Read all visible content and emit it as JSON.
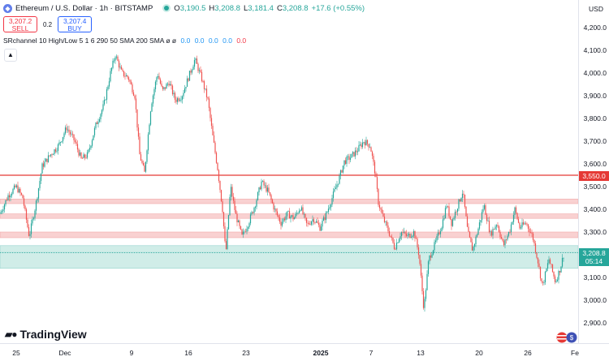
{
  "header": {
    "symbol": "Ethereum / U.S. Dollar · 1h · BITSTAMP",
    "open_key": "O",
    "open": "3,190.5",
    "high_key": "H",
    "high": "3,208.8",
    "low_key": "L",
    "low": "3,181.4",
    "close_key": "C",
    "close": "3,208.8",
    "change": "+17.6 (+0.55%)"
  },
  "trade": {
    "sell_price": "3,207.2",
    "sell_label": "SELL",
    "spread": "0.2",
    "buy_price": "3,207.4",
    "buy_label": "BUY"
  },
  "indicator": {
    "name": "SRchannel 10 High/Low 5 1 6 290 50 SMA 200 SMA",
    "flags": "ø ø",
    "values": [
      "0.0",
      "0.0",
      "0.0",
      "0.0"
    ],
    "last_value": "0.0"
  },
  "price_axis": {
    "currency": "USD",
    "ticks": [
      "4,200.0",
      "4,100.0",
      "4,000.0",
      "3,900.0",
      "3,800.0",
      "3,700.0",
      "3,600.0",
      "3,500.0",
      "3,400.0",
      "3,300.0",
      "3,200.0",
      "3,100.0",
      "3,000.0",
      "2,900.0"
    ],
    "level_label": "3,550.0",
    "last_price": "3,208.8",
    "countdown": "05:14"
  },
  "time_axis": {
    "ticks": [
      "25",
      "Dec",
      "9",
      "16",
      "23",
      "2025",
      "7",
      "13",
      "20",
      "26",
      "Fe"
    ]
  },
  "branding": {
    "logo": "TradingView"
  },
  "colors": {
    "up": "#26a69a",
    "down": "#ef5350",
    "level": "#e53935",
    "zone_red": "#f9c9c9",
    "zone_green": "#c8ebe5",
    "background": "#ffffff"
  },
  "icons": {
    "eth": "ethereum-icon",
    "live": "live-dot-icon",
    "collapse": "chevron-up-icon",
    "flag": "us-flag-icon"
  },
  "chart_data": {
    "type": "candlestick",
    "ylim": [
      2850,
      4260
    ],
    "resistance_line": 3550,
    "zones": [
      {
        "low": 3425,
        "high": 3445,
        "color": "red"
      },
      {
        "low": 3360,
        "high": 3380,
        "color": "red"
      },
      {
        "low": 3275,
        "high": 3300,
        "color": "red"
      },
      {
        "low": 3210,
        "high": 3240,
        "color": "green"
      },
      {
        "low": 3140,
        "high": 3210,
        "color": "green"
      }
    ],
    "anchors": [
      [
        0,
        3380
      ],
      [
        10,
        3460
      ],
      [
        20,
        3500
      ],
      [
        28,
        3450
      ],
      [
        36,
        3280
      ],
      [
        44,
        3420
      ],
      [
        52,
        3590
      ],
      [
        62,
        3640
      ],
      [
        72,
        3680
      ],
      [
        82,
        3760
      ],
      [
        92,
        3700
      ],
      [
        100,
        3620
      ],
      [
        108,
        3640
      ],
      [
        118,
        3770
      ],
      [
        128,
        3860
      ],
      [
        136,
        4000
      ],
      [
        142,
        4080
      ],
      [
        150,
        4000
      ],
      [
        158,
        3980
      ],
      [
        166,
        3900
      ],
      [
        172,
        3640
      ],
      [
        178,
        3560
      ],
      [
        186,
        3860
      ],
      [
        194,
        4000
      ],
      [
        200,
        3920
      ],
      [
        208,
        3960
      ],
      [
        216,
        3880
      ],
      [
        224,
        3900
      ],
      [
        232,
        3980
      ],
      [
        240,
        4060
      ],
      [
        248,
        3980
      ],
      [
        256,
        3880
      ],
      [
        262,
        3720
      ],
      [
        268,
        3580
      ],
      [
        274,
        3400
      ],
      [
        278,
        3200
      ],
      [
        284,
        3500
      ],
      [
        290,
        3380
      ],
      [
        298,
        3280
      ],
      [
        306,
        3340
      ],
      [
        314,
        3420
      ],
      [
        322,
        3520
      ],
      [
        330,
        3480
      ],
      [
        338,
        3400
      ],
      [
        346,
        3340
      ],
      [
        354,
        3380
      ],
      [
        362,
        3360
      ],
      [
        370,
        3410
      ],
      [
        378,
        3330
      ],
      [
        386,
        3360
      ],
      [
        394,
        3320
      ],
      [
        402,
        3380
      ],
      [
        410,
        3460
      ],
      [
        418,
        3540
      ],
      [
        424,
        3610
      ],
      [
        432,
        3630
      ],
      [
        440,
        3660
      ],
      [
        448,
        3700
      ],
      [
        456,
        3680
      ],
      [
        462,
        3560
      ],
      [
        466,
        3430
      ],
      [
        472,
        3360
      ],
      [
        480,
        3290
      ],
      [
        486,
        3230
      ],
      [
        494,
        3300
      ],
      [
        502,
        3280
      ],
      [
        510,
        3300
      ],
      [
        516,
        3200
      ],
      [
        522,
        2960
      ],
      [
        528,
        3180
      ],
      [
        536,
        3250
      ],
      [
        544,
        3330
      ],
      [
        550,
        3420
      ],
      [
        556,
        3340
      ],
      [
        562,
        3400
      ],
      [
        570,
        3480
      ],
      [
        576,
        3300
      ],
      [
        582,
        3220
      ],
      [
        588,
        3300
      ],
      [
        596,
        3420
      ],
      [
        604,
        3290
      ],
      [
        612,
        3340
      ],
      [
        620,
        3240
      ],
      [
        628,
        3310
      ],
      [
        634,
        3400
      ],
      [
        640,
        3320
      ],
      [
        648,
        3340
      ],
      [
        656,
        3280
      ],
      [
        662,
        3180
      ],
      [
        668,
        3060
      ],
      [
        676,
        3180
      ],
      [
        684,
        3080
      ],
      [
        690,
        3140
      ],
      [
        694,
        3200
      ]
    ]
  }
}
